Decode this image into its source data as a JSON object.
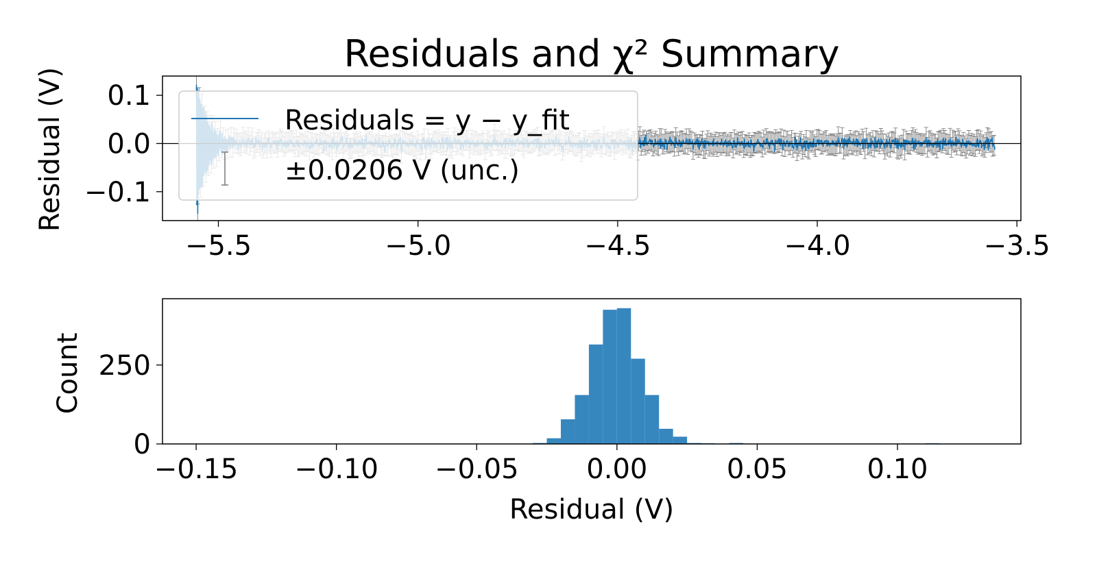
{
  "chart_data": [
    {
      "type": "line",
      "title": "Residuals and χ² Summary",
      "xlabel": "",
      "ylabel": "Residual (V)",
      "xlim": [
        -5.64,
        -3.49
      ],
      "ylim": [
        -0.16,
        0.14
      ],
      "x_ticks": [
        -5.5,
        -5.0,
        -4.5,
        -4.0,
        -3.5
      ],
      "x_tick_labels": [
        "−5.5",
        "−5.0",
        "−4.5",
        "−4.0",
        "−3.5"
      ],
      "y_ticks": [
        0.1,
        0.0,
        -0.1
      ],
      "y_tick_labels": [
        "0.1",
        "0.0",
        "−0.1"
      ],
      "zero_line": 0.0,
      "uncertainty": 0.0206,
      "grid": false,
      "legend_position": "upper-left",
      "legend": [
        {
          "label": "Residuals = y − y_fit"
        },
        {
          "label": "±0.0206 V (unc.)"
        }
      ],
      "series": [
        {
          "name": "Residuals = y − y_fit",
          "x_range": [
            -5.555,
            -3.555
          ],
          "sample_points": [
            {
              "x": -5.555,
              "y": 0.12
            },
            {
              "x": -5.548,
              "y": -0.13
            },
            {
              "x": -5.541,
              "y": 0.115
            },
            {
              "x": -5.534,
              "y": -0.145
            },
            {
              "x": -5.5,
              "y": 0.02
            },
            {
              "x": -5.0,
              "y": 0.0
            },
            {
              "x": -4.5,
              "y": 0.0
            },
            {
              "x": -4.0,
              "y": 0.0
            },
            {
              "x": -3.555,
              "y": 0.0
            }
          ]
        }
      ]
    },
    {
      "type": "bar",
      "title": "",
      "xlabel": "Residual (V)",
      "ylabel": "Count",
      "xlim": [
        -0.162,
        0.144
      ],
      "ylim": [
        0,
        460
      ],
      "x_ticks": [
        -0.15,
        -0.1,
        -0.05,
        0.0,
        0.05,
        0.1
      ],
      "x_tick_labels": [
        "−0.15",
        "−0.10",
        "−0.05",
        "0.00",
        "0.05",
        "0.10"
      ],
      "y_ticks": [
        0,
        250
      ],
      "y_tick_labels": [
        "0",
        "250"
      ],
      "bin_width": 0.005,
      "bin_centers": [
        -0.0325,
        -0.0275,
        -0.0225,
        -0.0175,
        -0.0125,
        -0.0075,
        -0.0025,
        0.0025,
        0.0075,
        0.0125,
        0.0175,
        0.0225,
        0.0275,
        0.0325,
        0.0375,
        0.0425,
        0.1125
      ],
      "values": [
        1,
        3,
        18,
        78,
        155,
        315,
        425,
        430,
        270,
        155,
        48,
        23,
        3,
        2,
        1,
        3,
        2
      ],
      "color": "#3787bf"
    }
  ]
}
